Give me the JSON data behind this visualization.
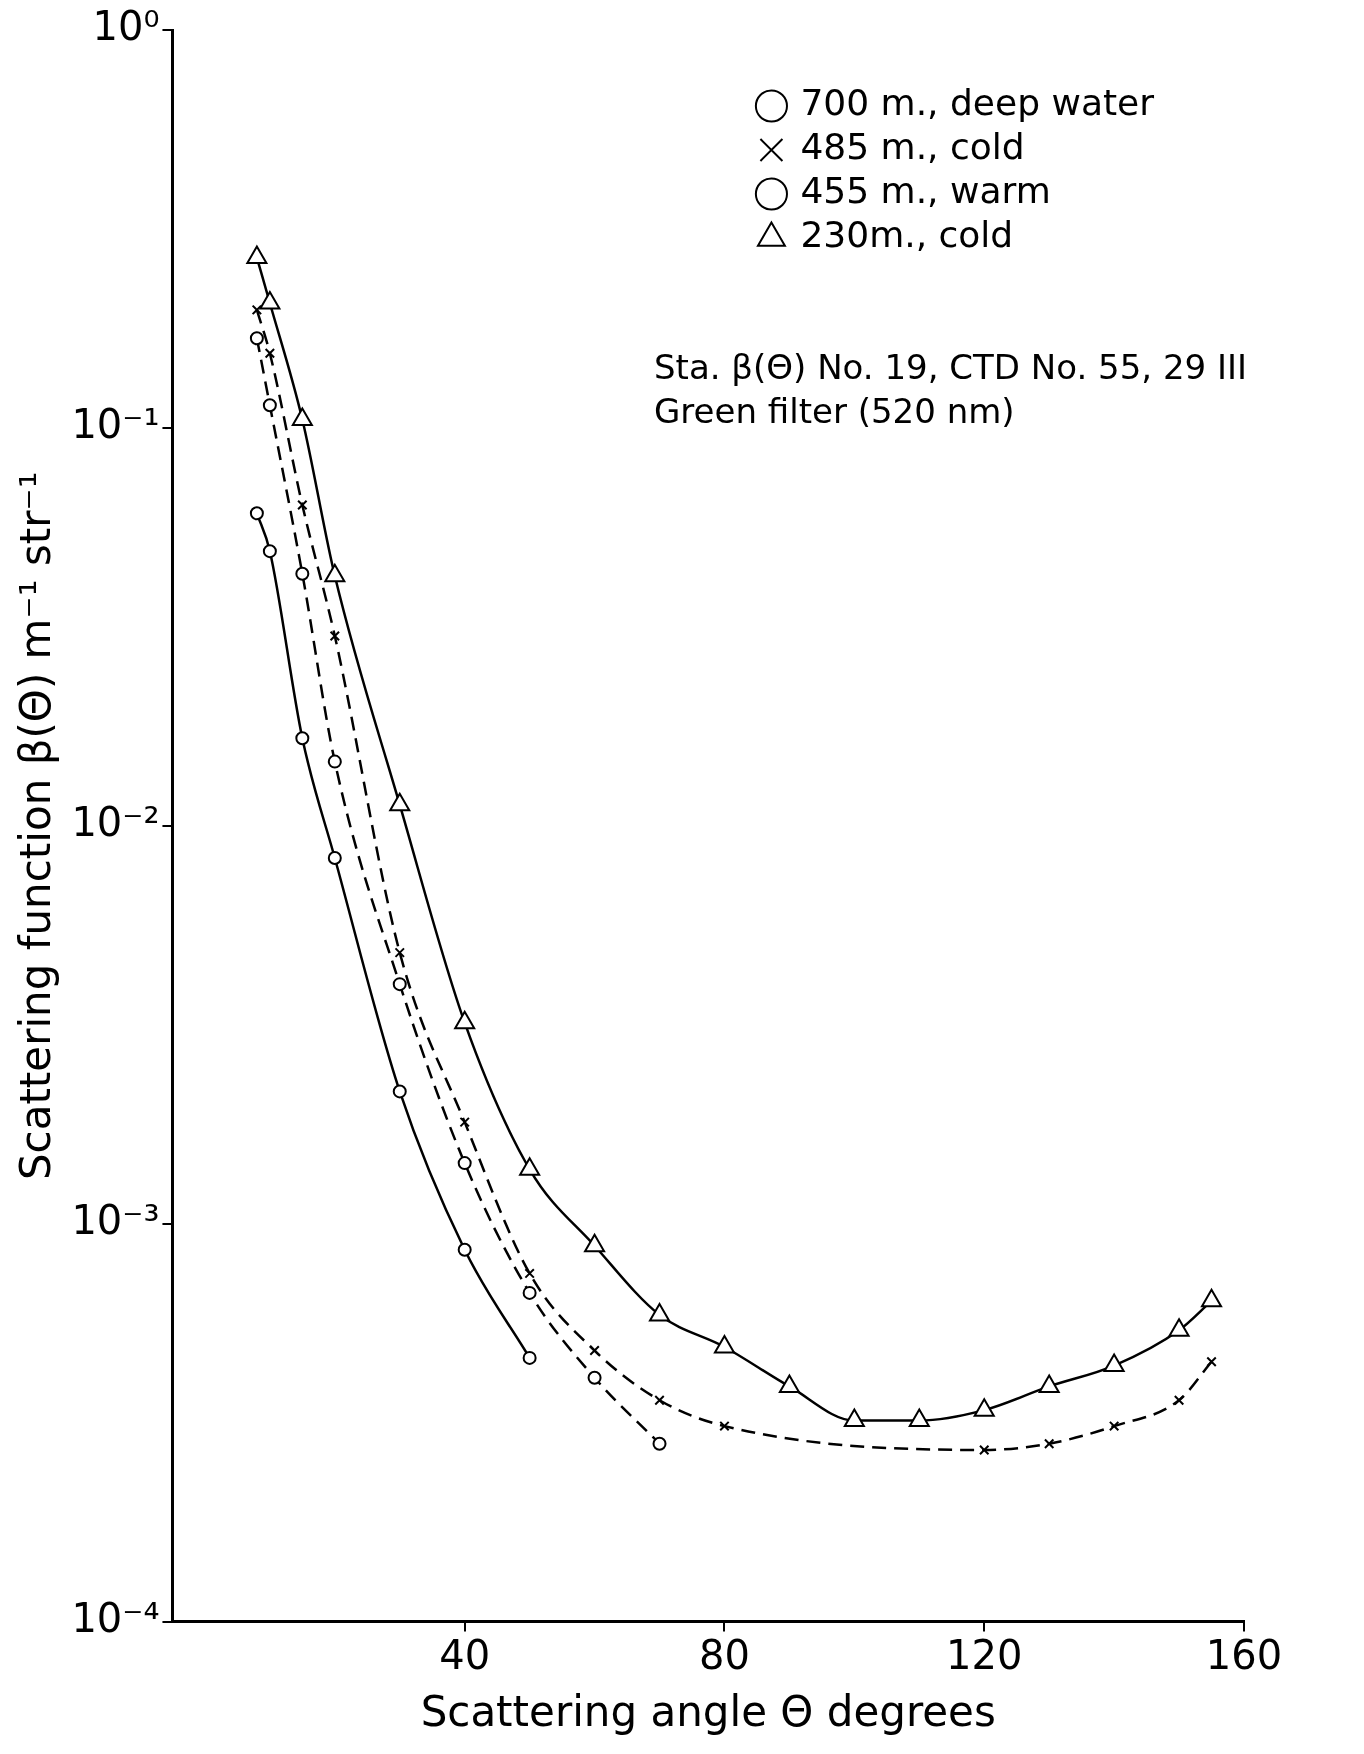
{
  "chart_data": {
    "type": "line",
    "xlabel": "Scattering angle Θ degrees",
    "ylabel": "Scattering function β(Θ) m⁻¹ str⁻¹",
    "annotations": [
      "Sta. β(Θ) No. 19, CTD No. 55, 29 III",
      "Green filter (520 nm)"
    ],
    "log": "y",
    "legend": "top right",
    "grid": false,
    "xlim": [
      -5,
      160
    ],
    "xticks": [
      40,
      80,
      120,
      160
    ],
    "ylim": [
      0.0001,
      1
    ],
    "yticks": [
      {
        "value": 1,
        "label": "10⁰"
      },
      {
        "value": 0.1,
        "label": "10⁻¹"
      },
      {
        "value": 0.01,
        "label": "10⁻²"
      },
      {
        "value": 0.001,
        "label": "10⁻³"
      },
      {
        "value": 0.0001,
        "label": "10⁻⁴"
      }
    ],
    "series": [
      {
        "name": "700 m., deep water",
        "color": "#000000",
        "marker": "circle",
        "line_style": "solid",
        "x": [
          8,
          10,
          15,
          20,
          30,
          40,
          50
        ],
        "values": [
          0.061,
          0.049,
          0.0166,
          0.0083,
          0.00215,
          0.00086,
          0.00046
        ]
      },
      {
        "name": "485 m., cold",
        "color": "#000000",
        "marker": "cross",
        "line_style": "dashed",
        "x": [
          8,
          10,
          15,
          20,
          30,
          40,
          50,
          60,
          70,
          80,
          120,
          130,
          140,
          150,
          155
        ],
        "values": [
          0.198,
          0.154,
          0.064,
          0.03,
          0.0048,
          0.0018,
          0.00075,
          0.00048,
          0.00036,
          0.00031,
          0.00027,
          0.00028,
          0.00031,
          0.00036,
          0.00045
        ]
      },
      {
        "name": "455 m., warm",
        "color": "#000000",
        "marker": "circle",
        "line_style": "dashed",
        "x": [
          8,
          10,
          15,
          20,
          30,
          40,
          50,
          60,
          70
        ],
        "values": [
          0.168,
          0.114,
          0.043,
          0.0145,
          0.004,
          0.00142,
          0.00067,
          0.00041,
          0.00028
        ]
      },
      {
        "name": "230m., cold",
        "color": "#000000",
        "marker": "triangle",
        "line_style": "solid",
        "x": [
          8,
          10,
          15,
          20,
          30,
          40,
          50,
          60,
          70,
          80,
          90,
          100,
          110,
          120,
          130,
          140,
          150,
          155
        ],
        "values": [
          0.268,
          0.206,
          0.105,
          0.0425,
          0.0113,
          0.0032,
          0.00137,
          0.00088,
          0.00059,
          0.00049,
          0.00039,
          0.00032,
          0.00032,
          0.00034,
          0.00039,
          0.00044,
          0.00054,
          0.00064
        ]
      }
    ]
  }
}
